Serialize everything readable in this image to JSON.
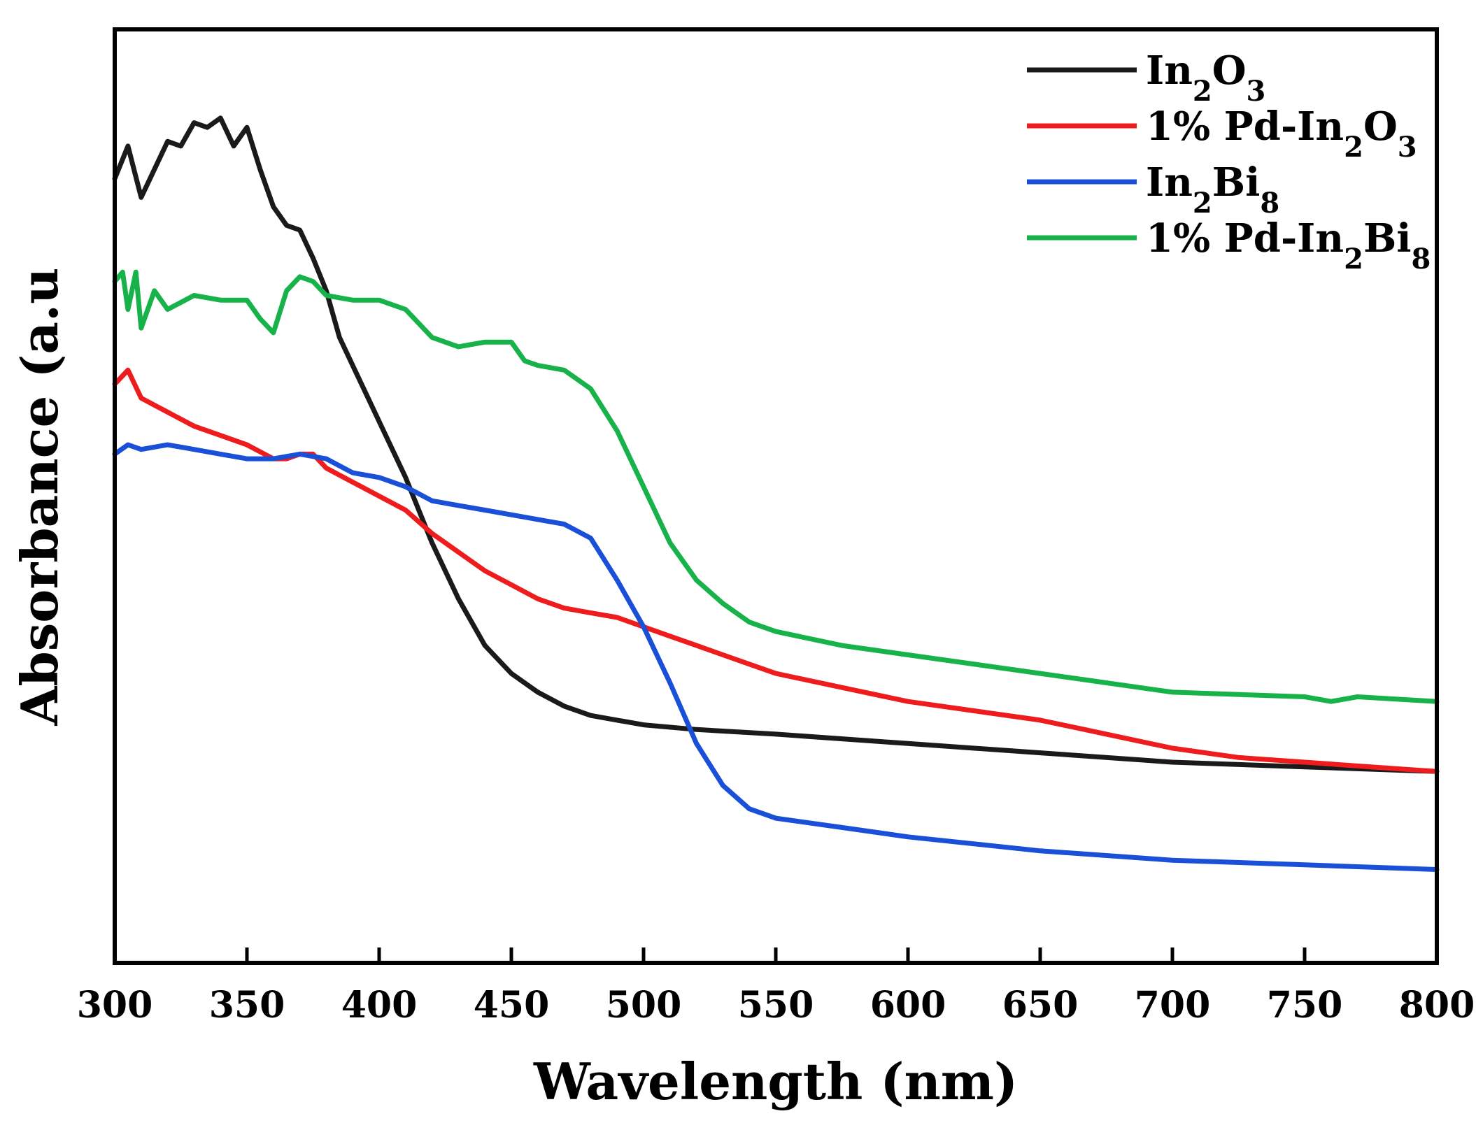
{
  "chart_data": {
    "type": "line",
    "title": "",
    "xlabel": "Wavelength (nm)",
    "ylabel": "Absorbance (a.u",
    "xlim": [
      300,
      800
    ],
    "ylim": [
      0,
      1
    ],
    "xticks": [
      300,
      350,
      400,
      450,
      500,
      550,
      600,
      650,
      700,
      750,
      800
    ],
    "y_tick_labels_shown": false,
    "grid": false,
    "legend_position": "top-right",
    "series": [
      {
        "name": "In2O3",
        "legend": {
          "parts": [
            {
              "t": "In"
            },
            {
              "t": "2",
              "sub": true
            },
            {
              "t": "O"
            },
            {
              "t": "3",
              "sub": true
            }
          ]
        },
        "color": "#1a1a1a",
        "x": [
          300,
          305,
          310,
          315,
          320,
          325,
          330,
          335,
          340,
          345,
          350,
          355,
          360,
          365,
          370,
          375,
          380,
          385,
          390,
          395,
          400,
          410,
          420,
          430,
          440,
          450,
          460,
          470,
          480,
          490,
          500,
          520,
          550,
          600,
          650,
          700,
          750,
          800
        ],
        "y": [
          0.84,
          0.875,
          0.82,
          0.85,
          0.88,
          0.875,
          0.9,
          0.895,
          0.905,
          0.875,
          0.895,
          0.85,
          0.81,
          0.79,
          0.785,
          0.755,
          0.72,
          0.67,
          0.64,
          0.61,
          0.58,
          0.52,
          0.45,
          0.39,
          0.34,
          0.31,
          0.29,
          0.275,
          0.265,
          0.26,
          0.255,
          0.25,
          0.245,
          0.235,
          0.225,
          0.215,
          0.21,
          0.205
        ]
      },
      {
        "name": "1% Pd-In2O3",
        "legend": {
          "parts": [
            {
              "t": "1% Pd-In"
            },
            {
              "t": "2",
              "sub": true
            },
            {
              "t": "O"
            },
            {
              "t": "3",
              "sub": true
            }
          ]
        },
        "color": "#ee1c1c",
        "x": [
          300,
          305,
          310,
          320,
          330,
          340,
          350,
          360,
          365,
          370,
          375,
          380,
          390,
          400,
          410,
          420,
          430,
          440,
          450,
          460,
          470,
          480,
          490,
          500,
          510,
          520,
          530,
          540,
          550,
          575,
          600,
          650,
          675,
          700,
          725,
          750,
          775,
          800
        ],
        "y": [
          0.62,
          0.635,
          0.605,
          0.59,
          0.575,
          0.565,
          0.555,
          0.54,
          0.54,
          0.545,
          0.545,
          0.53,
          0.515,
          0.5,
          0.485,
          0.46,
          0.44,
          0.42,
          0.405,
          0.39,
          0.38,
          0.375,
          0.37,
          0.36,
          0.35,
          0.34,
          0.33,
          0.32,
          0.31,
          0.295,
          0.28,
          0.26,
          0.245,
          0.23,
          0.22,
          0.215,
          0.21,
          0.205
        ]
      },
      {
        "name": "In2Bi8",
        "legend": {
          "parts": [
            {
              "t": "In"
            },
            {
              "t": "2",
              "sub": true
            },
            {
              "t": "Bi"
            },
            {
              "t": "8",
              "sub": true
            }
          ]
        },
        "color": "#1a4fd8",
        "x": [
          300,
          305,
          310,
          320,
          330,
          340,
          350,
          360,
          370,
          380,
          390,
          400,
          410,
          420,
          430,
          440,
          450,
          460,
          470,
          480,
          490,
          500,
          510,
          520,
          530,
          540,
          550,
          575,
          600,
          650,
          700,
          750,
          800
        ],
        "y": [
          0.545,
          0.555,
          0.55,
          0.555,
          0.55,
          0.545,
          0.54,
          0.54,
          0.545,
          0.54,
          0.525,
          0.52,
          0.51,
          0.495,
          0.49,
          0.485,
          0.48,
          0.475,
          0.47,
          0.455,
          0.41,
          0.36,
          0.3,
          0.235,
          0.19,
          0.165,
          0.155,
          0.145,
          0.135,
          0.12,
          0.11,
          0.105,
          0.1
        ]
      },
      {
        "name": "1% Pd-In2Bi8",
        "legend": {
          "parts": [
            {
              "t": "1% Pd-In"
            },
            {
              "t": "2",
              "sub": true
            },
            {
              "t": "Bi"
            },
            {
              "t": "8",
              "sub": true
            }
          ]
        },
        "color": "#17b34a",
        "x": [
          300,
          303,
          305,
          308,
          310,
          315,
          320,
          330,
          340,
          350,
          355,
          360,
          365,
          370,
          375,
          380,
          390,
          400,
          410,
          420,
          430,
          440,
          450,
          455,
          460,
          470,
          480,
          490,
          500,
          510,
          520,
          530,
          540,
          550,
          575,
          600,
          650,
          700,
          750,
          760,
          770,
          800
        ],
        "y": [
          0.73,
          0.74,
          0.7,
          0.74,
          0.68,
          0.72,
          0.7,
          0.715,
          0.71,
          0.71,
          0.69,
          0.675,
          0.72,
          0.735,
          0.73,
          0.715,
          0.71,
          0.71,
          0.7,
          0.67,
          0.66,
          0.665,
          0.665,
          0.645,
          0.64,
          0.635,
          0.615,
          0.57,
          0.51,
          0.45,
          0.41,
          0.385,
          0.365,
          0.355,
          0.34,
          0.33,
          0.31,
          0.29,
          0.285,
          0.28,
          0.285,
          0.28
        ]
      }
    ]
  }
}
